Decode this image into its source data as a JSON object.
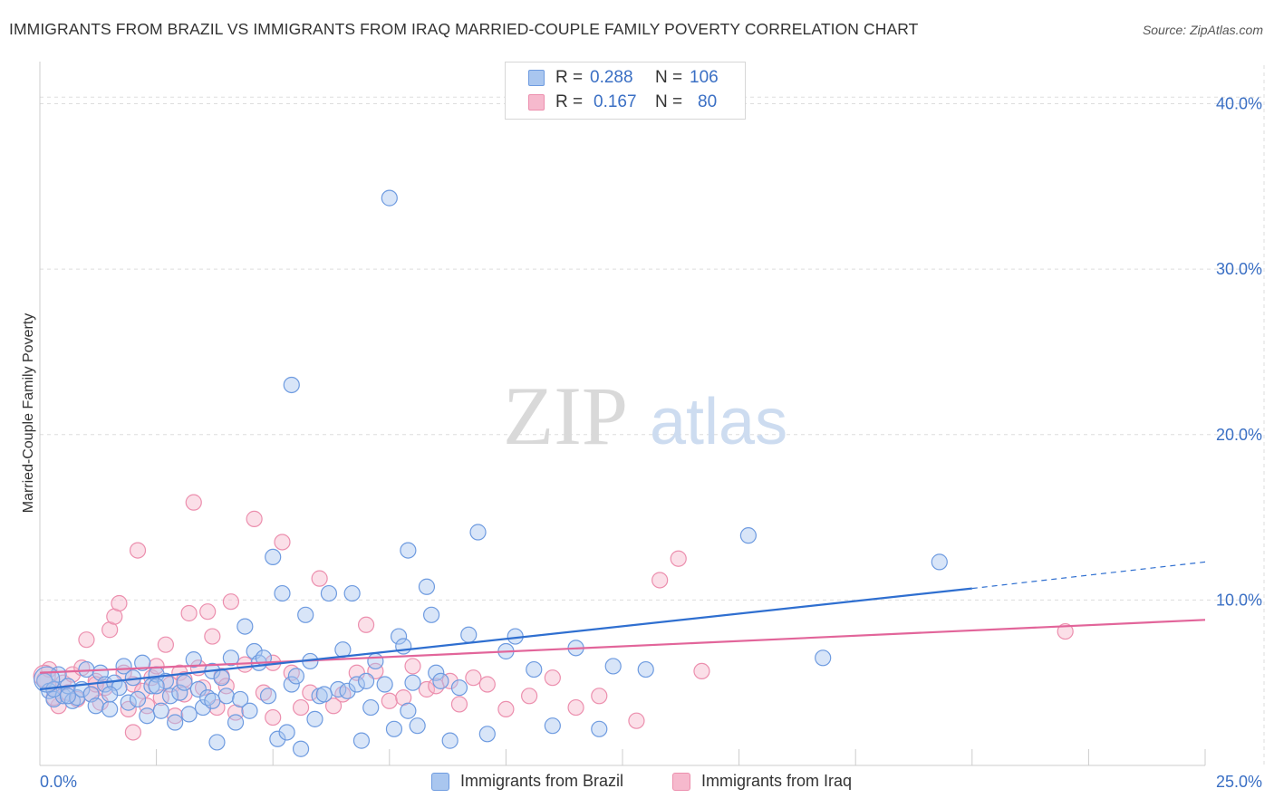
{
  "title": "IMMIGRANTS FROM BRAZIL VS IMMIGRANTS FROM IRAQ MARRIED-COUPLE FAMILY POVERTY CORRELATION CHART",
  "source": "Source: ZipAtlas.com",
  "watermark": {
    "zip": "ZIP",
    "atlas": "atlas"
  },
  "colors": {
    "brazil_fill": "#a9c6ef",
    "brazil_stroke": "#6e9be0",
    "brazil_line": "#2f6fd0",
    "iraq_fill": "#f6b9cd",
    "iraq_stroke": "#ec8fae",
    "iraq_line": "#e2659a",
    "axis_label_color": "#3a6fc4",
    "grid": "#dddddd"
  },
  "legend": {
    "rows": [
      {
        "r_label": "R =",
        "r_value": "0.288",
        "n_label": "N =",
        "n_value": "106"
      },
      {
        "r_label": "R =",
        "r_value": "0.167",
        "n_label": "N =",
        "n_value": "80"
      }
    ]
  },
  "chart_data": {
    "type": "scatter",
    "title": "IMMIGRANTS FROM BRAZIL VS IMMIGRANTS FROM IRAQ MARRIED-COUPLE FAMILY POVERTY CORRELATION CHART",
    "xlabel": "",
    "ylabel": "Married-Couple Family Poverty",
    "xlim": [
      0,
      25
    ],
    "ylim": [
      0,
      42
    ],
    "x_tick_labels": [
      "0.0%",
      "25.0%"
    ],
    "y_ticks": [
      10,
      20,
      30,
      40
    ],
    "y_tick_labels": [
      "10.0%",
      "20.0%",
      "30.0%",
      "40.0%"
    ],
    "grid": true,
    "legend_position": "top-center",
    "series": [
      {
        "name": "Immigrants from Brazil",
        "r": 0.288,
        "n": 106,
        "trend": {
          "x0": 0,
          "y0": 4.6,
          "x1": 20,
          "y1": 10.7,
          "x_dashed_end": 25,
          "y_dashed_end": 12.3
        },
        "points": [
          [
            0.1,
            5.1
          ],
          [
            0.2,
            4.5
          ],
          [
            0.3,
            4.0
          ],
          [
            0.4,
            5.5
          ],
          [
            0.5,
            4.2
          ],
          [
            0.6,
            4.8
          ],
          [
            0.7,
            3.9
          ],
          [
            0.8,
            4.1
          ],
          [
            0.9,
            4.6
          ],
          [
            1.0,
            5.8
          ],
          [
            1.1,
            4.3
          ],
          [
            1.2,
            3.6
          ],
          [
            1.3,
            5.6
          ],
          [
            1.4,
            4.9
          ],
          [
            1.5,
            3.4
          ],
          [
            1.6,
            5.0
          ],
          [
            1.7,
            4.7
          ],
          [
            1.8,
            6.0
          ],
          [
            1.9,
            3.8
          ],
          [
            2.0,
            5.3
          ],
          [
            2.1,
            4.0
          ],
          [
            2.2,
            6.2
          ],
          [
            2.3,
            3.0
          ],
          [
            2.4,
            4.8
          ],
          [
            2.5,
            5.5
          ],
          [
            2.6,
            3.3
          ],
          [
            2.7,
            5.1
          ],
          [
            2.8,
            4.2
          ],
          [
            2.9,
            2.6
          ],
          [
            3.0,
            4.4
          ],
          [
            3.1,
            5.0
          ],
          [
            3.2,
            3.1
          ],
          [
            3.3,
            6.4
          ],
          [
            3.4,
            4.6
          ],
          [
            3.5,
            3.5
          ],
          [
            3.6,
            4.1
          ],
          [
            3.7,
            5.7
          ],
          [
            3.8,
            1.4
          ],
          [
            3.9,
            5.3
          ],
          [
            4.0,
            4.2
          ],
          [
            4.1,
            6.5
          ],
          [
            4.2,
            2.6
          ],
          [
            4.3,
            4.0
          ],
          [
            4.4,
            8.4
          ],
          [
            4.5,
            3.3
          ],
          [
            4.6,
            6.9
          ],
          [
            4.7,
            6.2
          ],
          [
            4.8,
            6.5
          ],
          [
            5.0,
            12.6
          ],
          [
            5.1,
            1.6
          ],
          [
            5.2,
            10.4
          ],
          [
            5.3,
            2.0
          ],
          [
            5.4,
            4.9
          ],
          [
            5.5,
            5.4
          ],
          [
            5.6,
            1.0
          ],
          [
            5.7,
            9.1
          ],
          [
            5.8,
            6.3
          ],
          [
            5.9,
            2.8
          ],
          [
            6.0,
            4.2
          ],
          [
            6.2,
            10.4
          ],
          [
            6.4,
            4.6
          ],
          [
            6.5,
            7.0
          ],
          [
            6.6,
            4.5
          ],
          [
            6.7,
            10.4
          ],
          [
            6.8,
            4.9
          ],
          [
            6.9,
            1.5
          ],
          [
            7.0,
            5.1
          ],
          [
            7.1,
            3.5
          ],
          [
            7.2,
            6.3
          ],
          [
            7.4,
            4.9
          ],
          [
            7.6,
            2.2
          ],
          [
            7.7,
            7.8
          ],
          [
            7.8,
            7.2
          ],
          [
            7.9,
            3.3
          ],
          [
            8.0,
            5.0
          ],
          [
            8.1,
            2.4
          ],
          [
            8.3,
            10.8
          ],
          [
            8.4,
            9.1
          ],
          [
            8.5,
            5.6
          ],
          [
            8.6,
            5.1
          ],
          [
            8.8,
            1.5
          ],
          [
            9.0,
            4.7
          ],
          [
            9.2,
            7.9
          ],
          [
            9.4,
            14.1
          ],
          [
            9.6,
            1.9
          ],
          [
            10.0,
            6.9
          ],
          [
            10.2,
            7.8
          ],
          [
            10.6,
            5.8
          ],
          [
            11.0,
            2.4
          ],
          [
            11.5,
            7.1
          ],
          [
            12.0,
            2.2
          ],
          [
            12.3,
            6.0
          ],
          [
            13.0,
            5.8
          ],
          [
            15.2,
            13.9
          ],
          [
            16.8,
            6.5
          ],
          [
            19.3,
            12.3
          ],
          [
            7.5,
            34.3
          ],
          [
            5.4,
            23.0
          ],
          [
            7.9,
            13.0
          ],
          [
            2.5,
            4.8
          ],
          [
            1.5,
            4.3
          ],
          [
            3.7,
            3.9
          ],
          [
            4.9,
            4.2
          ],
          [
            6.1,
            4.3
          ],
          [
            0.3,
            4.6
          ],
          [
            0.6,
            4.2
          ]
        ]
      },
      {
        "name": "Immigrants from Iraq",
        "r": 0.167,
        "n": 80,
        "trend": {
          "x0": 0,
          "y0": 5.6,
          "x1": 25,
          "y1": 8.8
        },
        "points": [
          [
            0.1,
            5.2
          ],
          [
            0.2,
            5.8
          ],
          [
            0.3,
            4.6
          ],
          [
            0.4,
            3.6
          ],
          [
            0.5,
            5.0
          ],
          [
            0.6,
            4.4
          ],
          [
            0.7,
            5.5
          ],
          [
            0.8,
            4.0
          ],
          [
            0.9,
            5.9
          ],
          [
            1.0,
            7.6
          ],
          [
            1.1,
            4.3
          ],
          [
            1.2,
            5.1
          ],
          [
            1.3,
            3.8
          ],
          [
            1.4,
            4.7
          ],
          [
            1.5,
            8.2
          ],
          [
            1.6,
            9.0
          ],
          [
            1.7,
            9.8
          ],
          [
            1.8,
            5.6
          ],
          [
            1.9,
            3.4
          ],
          [
            2.0,
            4.9
          ],
          [
            2.1,
            13.0
          ],
          [
            2.2,
            4.5
          ],
          [
            2.3,
            3.6
          ],
          [
            2.4,
            5.3
          ],
          [
            2.5,
            6.0
          ],
          [
            2.6,
            4.1
          ],
          [
            2.7,
            7.3
          ],
          [
            2.8,
            4.9
          ],
          [
            2.9,
            3.0
          ],
          [
            3.0,
            5.6
          ],
          [
            3.1,
            4.3
          ],
          [
            3.2,
            9.2
          ],
          [
            3.3,
            15.9
          ],
          [
            3.4,
            5.9
          ],
          [
            3.5,
            4.7
          ],
          [
            3.6,
            9.3
          ],
          [
            3.7,
            7.8
          ],
          [
            3.8,
            3.5
          ],
          [
            3.9,
            5.4
          ],
          [
            4.0,
            4.8
          ],
          [
            4.1,
            9.9
          ],
          [
            4.2,
            3.2
          ],
          [
            4.4,
            6.1
          ],
          [
            4.6,
            14.9
          ],
          [
            4.8,
            4.4
          ],
          [
            5.0,
            6.2
          ],
          [
            5.2,
            13.5
          ],
          [
            5.4,
            5.6
          ],
          [
            5.6,
            3.5
          ],
          [
            5.8,
            4.4
          ],
          [
            6.0,
            11.3
          ],
          [
            6.3,
            3.6
          ],
          [
            6.5,
            4.3
          ],
          [
            6.8,
            5.6
          ],
          [
            7.0,
            8.5
          ],
          [
            7.2,
            5.7
          ],
          [
            7.5,
            3.9
          ],
          [
            7.8,
            4.1
          ],
          [
            8.0,
            6.0
          ],
          [
            8.3,
            4.6
          ],
          [
            8.5,
            4.8
          ],
          [
            8.8,
            5.1
          ],
          [
            9.0,
            3.7
          ],
          [
            9.3,
            5.3
          ],
          [
            9.6,
            4.9
          ],
          [
            10.0,
            3.4
          ],
          [
            10.5,
            4.2
          ],
          [
            11.0,
            5.3
          ],
          [
            11.5,
            3.5
          ],
          [
            12.0,
            4.2
          ],
          [
            12.8,
            2.7
          ],
          [
            13.3,
            11.2
          ],
          [
            13.7,
            12.5
          ],
          [
            14.2,
            5.7
          ],
          [
            22.0,
            8.1
          ],
          [
            0.3,
            4.1
          ],
          [
            1.2,
            4.9
          ],
          [
            2.0,
            2.0
          ],
          [
            3.1,
            5.2
          ],
          [
            5.0,
            2.9
          ]
        ]
      }
    ]
  },
  "bottom_legend": [
    {
      "label": "Immigrants from Brazil"
    },
    {
      "label": "Immigrants from Iraq"
    }
  ]
}
